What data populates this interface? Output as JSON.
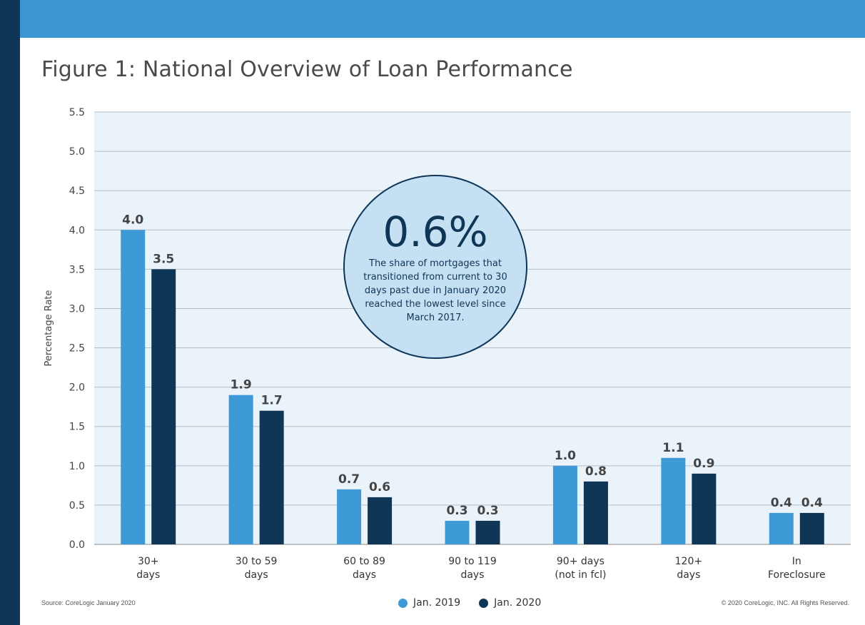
{
  "header": {
    "title": "Figure 1: National Overview of Loan Performance"
  },
  "chart_data": {
    "type": "bar",
    "title": "Figure 1: National Overview of Loan Performance",
    "ylabel": "Percentage Rate",
    "xlabel": "",
    "ylim": [
      0,
      5.5
    ],
    "yticks": [
      "0.0",
      "0.5",
      "1.0",
      "1.5",
      "2.0",
      "2.5",
      "3.0",
      "3.5",
      "4.0",
      "4.5",
      "5.0",
      "5.5"
    ],
    "grid": true,
    "legend_position": "bottom-center",
    "categories": [
      [
        "30+",
        "days"
      ],
      [
        "30 to 59",
        "days"
      ],
      [
        "60 to 89",
        "days"
      ],
      [
        "90 to 119",
        "days"
      ],
      [
        "90+ days",
        "(not in fcl)"
      ],
      [
        "120+",
        "days"
      ],
      [
        "In",
        "Foreclosure"
      ]
    ],
    "series": [
      {
        "name": "Jan. 2019",
        "color": "#3d9ad6",
        "values": [
          4.0,
          1.9,
          0.7,
          0.3,
          1.0,
          1.1,
          0.4
        ],
        "labels": [
          "4.0",
          "1.9",
          "0.7",
          "0.3",
          "1.0",
          "1.1",
          "0.4"
        ]
      },
      {
        "name": "Jan. 2020",
        "color": "#0f3557",
        "values": [
          3.5,
          1.7,
          0.6,
          0.3,
          0.8,
          0.9,
          0.4
        ],
        "labels": [
          "3.5",
          "1.7",
          "0.6",
          "0.3",
          "0.8",
          "0.9",
          "0.4"
        ]
      }
    ]
  },
  "callout": {
    "value": "0.6%",
    "text": "The share of mortgages that transitioned from current to 30 days past due in January 2020 reached the lowest level since March 2017."
  },
  "footer": {
    "source": "Source: CoreLogic January 2020",
    "copyright": "© 2020 CoreLogic, INC. All Rights Reserved."
  },
  "colors": {
    "sidebar": "#0f3557",
    "header_band": "#3d95d3",
    "plot_background": "#eaf3fa"
  }
}
